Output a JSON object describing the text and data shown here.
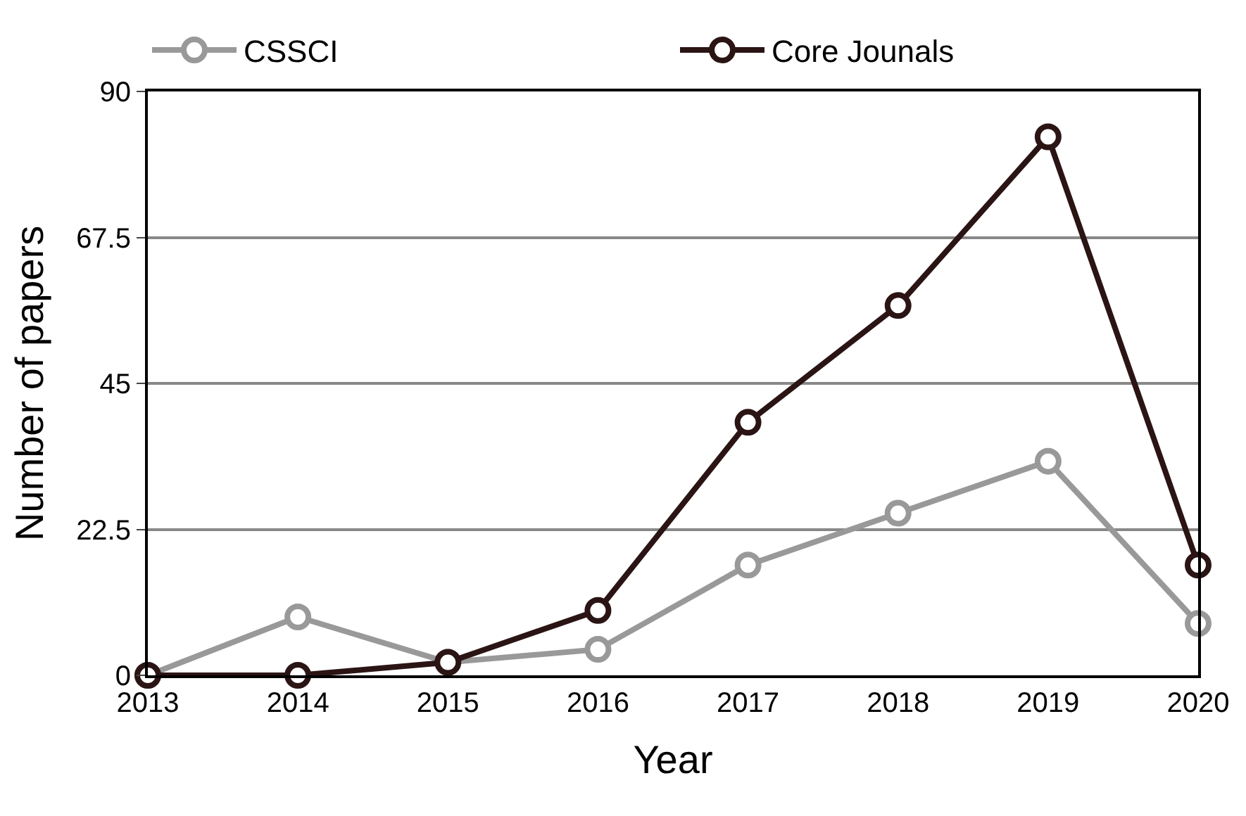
{
  "chart_data": {
    "type": "line",
    "xlabel": "Year",
    "ylabel": "Number of papers",
    "x": [
      2013,
      2014,
      2015,
      2016,
      2017,
      2018,
      2019,
      2020
    ],
    "series": [
      {
        "name": "CSSCI",
        "color": "#999999",
        "values": [
          0,
          9,
          2,
          4,
          17,
          25,
          33,
          8
        ]
      },
      {
        "name": "Core Jounals",
        "color": "#2b1414",
        "values": [
          0,
          0,
          2,
          10,
          39,
          57,
          83,
          17
        ]
      }
    ],
    "xlim": [
      2013,
      2020
    ],
    "xticks": [
      2013,
      2014,
      2015,
      2016,
      2017,
      2018,
      2019,
      2020
    ],
    "ylim": [
      0,
      90
    ],
    "yticks": [
      0,
      22.5,
      45,
      67.5,
      90
    ],
    "grid": "y",
    "legend": "top",
    "marker": "circle",
    "line_style": "solid"
  }
}
